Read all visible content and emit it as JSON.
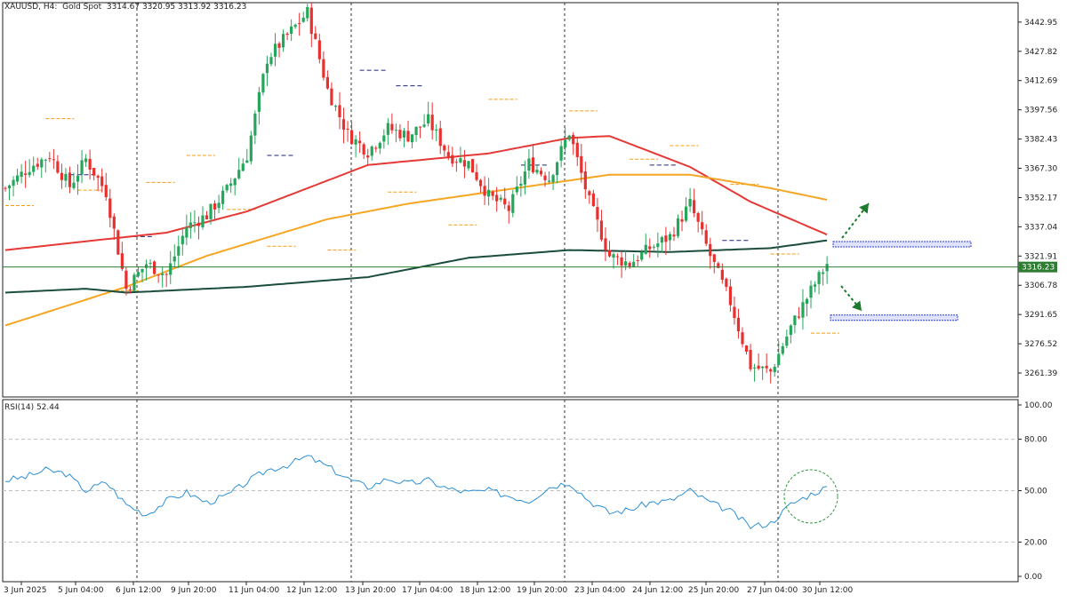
{
  "header": {
    "symbol": "XAUUSD, H4:  Gold Spot",
    "ohlc": "3314.67 3320.95 3313.92 3316.23"
  },
  "rsi_header": {
    "label": "RSI(14) 52.44"
  },
  "current_price_label": "3316.23",
  "colors": {
    "bull": "#26a65b",
    "bear": "#e8302f",
    "ma_fast": "#e53935",
    "ma_mid": "#f5a623",
    "ma_slow": "#1b4d3e",
    "rsi_line": "#2b8fd6",
    "pivot_orange": "#f39c12",
    "pivot_navy": "#1a237e",
    "price_line": "#2e7d32",
    "arrow": "#1b7a2e",
    "zone": "#2b3fd6"
  },
  "chart_data": [
    {
      "type": "candlestick",
      "title": "XAUUSD, H4:  Gold Spot",
      "xlabel": "",
      "ylabel": "",
      "ylim": [
        3249,
        3453
      ],
      "y_ticks": [
        "3442.95",
        "3427.82",
        "3412.69",
        "3397.56",
        "3382.43",
        "3367.30",
        "3352.17",
        "3337.04",
        "3321.91",
        "3306.78",
        "3291.65",
        "3276.52",
        "3261.39"
      ],
      "x_tick_labels": [
        "3 Jun 2025",
        "5 Jun 04:00",
        "6 Jun 12:00",
        "9 Jun 20:00",
        "11 Jun 04:00",
        "12 Jun 12:00",
        "13 Jun 20:00",
        "17 Jun 04:00",
        "18 Jun 12:00",
        "19 Jun 20:00",
        "23 Jun 04:00",
        "24 Jun 12:00",
        "25 Jun 20:00",
        "27 Jun 04:00",
        "30 Jun 12:00"
      ],
      "last_price": 3316.23,
      "grid": false,
      "anchors": [
        {
          "t": 0,
          "c": 3357
        },
        {
          "t": 6,
          "c": 3368
        },
        {
          "t": 11,
          "c": 3374
        },
        {
          "t": 16,
          "c": 3358
        },
        {
          "t": 20,
          "c": 3372
        },
        {
          "t": 25,
          "c": 3355
        },
        {
          "t": 30,
          "c": 3305
        },
        {
          "t": 35,
          "c": 3318
        },
        {
          "t": 40,
          "c": 3312
        },
        {
          "t": 45,
          "c": 3337
        },
        {
          "t": 50,
          "c": 3343
        },
        {
          "t": 55,
          "c": 3356
        },
        {
          "t": 60,
          "c": 3374
        },
        {
          "t": 65,
          "c": 3424
        },
        {
          "t": 70,
          "c": 3436
        },
        {
          "t": 75,
          "c": 3448
        },
        {
          "t": 80,
          "c": 3408
        },
        {
          "t": 85,
          "c": 3385
        },
        {
          "t": 90,
          "c": 3376
        },
        {
          "t": 95,
          "c": 3388
        },
        {
          "t": 100,
          "c": 3384
        },
        {
          "t": 105,
          "c": 3392
        },
        {
          "t": 110,
          "c": 3374
        },
        {
          "t": 115,
          "c": 3370
        },
        {
          "t": 120,
          "c": 3353
        },
        {
          "t": 125,
          "c": 3346
        },
        {
          "t": 130,
          "c": 3370
        },
        {
          "t": 135,
          "c": 3362
        },
        {
          "t": 140,
          "c": 3386
        },
        {
          "t": 145,
          "c": 3350
        },
        {
          "t": 150,
          "c": 3322
        },
        {
          "t": 155,
          "c": 3318
        },
        {
          "t": 160,
          "c": 3326
        },
        {
          "t": 165,
          "c": 3332
        },
        {
          "t": 170,
          "c": 3349
        },
        {
          "t": 175,
          "c": 3322
        },
        {
          "t": 180,
          "c": 3298
        },
        {
          "t": 185,
          "c": 3265
        },
        {
          "t": 190,
          "c": 3262
        },
        {
          "t": 195,
          "c": 3285
        },
        {
          "t": 200,
          "c": 3304
        },
        {
          "t": 204,
          "c": 3318
        }
      ],
      "indicators": [
        {
          "name": "MA fast",
          "points": [
            {
              "t": 0,
              "v": 3325
            },
            {
              "t": 40,
              "v": 3334
            },
            {
              "t": 60,
              "v": 3345
            },
            {
              "t": 90,
              "v": 3369
            },
            {
              "t": 120,
              "v": 3375
            },
            {
              "t": 140,
              "v": 3383
            },
            {
              "t": 150,
              "v": 3384
            },
            {
              "t": 170,
              "v": 3368
            },
            {
              "t": 185,
              "v": 3350
            },
            {
              "t": 204,
              "v": 3333
            }
          ]
        },
        {
          "name": "MA mid",
          "points": [
            {
              "t": 0,
              "v": 3286
            },
            {
              "t": 30,
              "v": 3306
            },
            {
              "t": 50,
              "v": 3322
            },
            {
              "t": 80,
              "v": 3341
            },
            {
              "t": 100,
              "v": 3349
            },
            {
              "t": 130,
              "v": 3358
            },
            {
              "t": 150,
              "v": 3364
            },
            {
              "t": 170,
              "v": 3364
            },
            {
              "t": 190,
              "v": 3357
            },
            {
              "t": 204,
              "v": 3351
            }
          ]
        },
        {
          "name": "MA slow",
          "points": [
            {
              "t": 0,
              "v": 3303
            },
            {
              "t": 20,
              "v": 3305
            },
            {
              "t": 30,
              "v": 3303
            },
            {
              "t": 60,
              "v": 3306
            },
            {
              "t": 90,
              "v": 3311
            },
            {
              "t": 115,
              "v": 3321
            },
            {
              "t": 140,
              "v": 3325
            },
            {
              "t": 165,
              "v": 3324
            },
            {
              "t": 190,
              "v": 3326
            },
            {
              "t": 204,
              "v": 3330
            }
          ]
        }
      ],
      "pivot_levels": [
        {
          "t": 0,
          "v": 3348
        },
        {
          "t": 10,
          "v": 3393
        },
        {
          "t": 18,
          "v": 3356
        },
        {
          "t": 26,
          "v": 3304
        },
        {
          "t": 35,
          "v": 3360
        },
        {
          "t": 45,
          "v": 3374
        },
        {
          "t": 55,
          "v": 3346
        },
        {
          "t": 65,
          "v": 3327
        },
        {
          "t": 80,
          "v": 3325
        },
        {
          "t": 95,
          "v": 3355
        },
        {
          "t": 110,
          "v": 3338
        },
        {
          "t": 120,
          "v": 3403
        },
        {
          "t": 140,
          "v": 3397
        },
        {
          "t": 155,
          "v": 3372
        },
        {
          "t": 165,
          "v": 3379
        },
        {
          "t": 180,
          "v": 3359
        },
        {
          "t": 190,
          "v": 3323
        },
        {
          "t": 200,
          "v": 3282
        }
      ],
      "annotations": [
        {
          "type": "arrow",
          "direction": "up",
          "label": ""
        },
        {
          "type": "arrow",
          "direction": "down",
          "label": ""
        },
        {
          "type": "zone",
          "level": 3328
        },
        {
          "type": "zone",
          "level": 3290
        }
      ]
    },
    {
      "type": "line",
      "title": "RSI(14) 52.44",
      "ylim": [
        0,
        100
      ],
      "y_ticks": [
        "100.00",
        "80.00",
        "50.00",
        "20.00",
        "0.00"
      ],
      "levels": [
        80,
        50,
        20
      ],
      "series": [
        {
          "name": "RSI(14)",
          "points": [
            {
              "t": 0,
              "v": 56
            },
            {
              "t": 5,
              "v": 58
            },
            {
              "t": 10,
              "v": 62
            },
            {
              "t": 15,
              "v": 60
            },
            {
              "t": 20,
              "v": 50
            },
            {
              "t": 25,
              "v": 55
            },
            {
              "t": 30,
              "v": 42
            },
            {
              "t": 35,
              "v": 36
            },
            {
              "t": 40,
              "v": 44
            },
            {
              "t": 45,
              "v": 49
            },
            {
              "t": 50,
              "v": 43
            },
            {
              "t": 55,
              "v": 47
            },
            {
              "t": 60,
              "v": 55
            },
            {
              "t": 65,
              "v": 62
            },
            {
              "t": 70,
              "v": 65
            },
            {
              "t": 75,
              "v": 70
            },
            {
              "t": 80,
              "v": 64
            },
            {
              "t": 85,
              "v": 57
            },
            {
              "t": 90,
              "v": 52
            },
            {
              "t": 95,
              "v": 57
            },
            {
              "t": 100,
              "v": 54
            },
            {
              "t": 105,
              "v": 56
            },
            {
              "t": 110,
              "v": 51
            },
            {
              "t": 115,
              "v": 49
            },
            {
              "t": 120,
              "v": 50
            },
            {
              "t": 125,
              "v": 47
            },
            {
              "t": 130,
              "v": 44
            },
            {
              "t": 135,
              "v": 52
            },
            {
              "t": 140,
              "v": 55
            },
            {
              "t": 145,
              "v": 44
            },
            {
              "t": 150,
              "v": 37
            },
            {
              "t": 155,
              "v": 39
            },
            {
              "t": 160,
              "v": 43
            },
            {
              "t": 165,
              "v": 44
            },
            {
              "t": 170,
              "v": 50
            },
            {
              "t": 175,
              "v": 43
            },
            {
              "t": 180,
              "v": 38
            },
            {
              "t": 185,
              "v": 29
            },
            {
              "t": 190,
              "v": 31
            },
            {
              "t": 195,
              "v": 42
            },
            {
              "t": 200,
              "v": 48
            },
            {
              "t": 204,
              "v": 52
            }
          ]
        }
      ],
      "annotations": [
        {
          "type": "circle",
          "label": ""
        }
      ]
    }
  ]
}
